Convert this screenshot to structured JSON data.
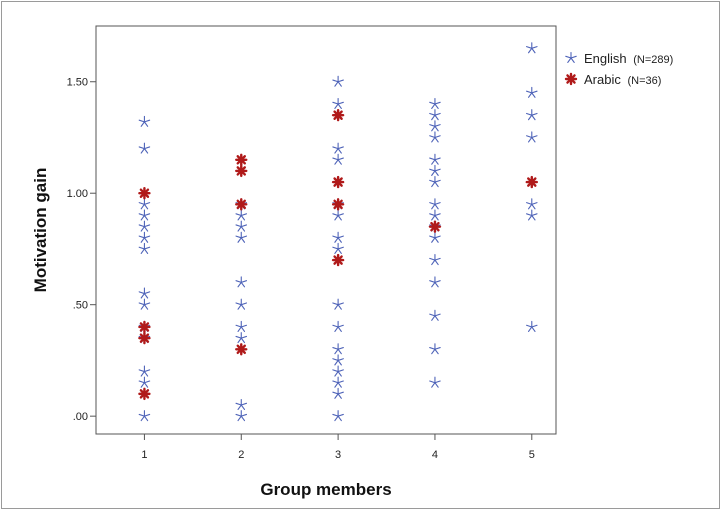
{
  "chart_data": {
    "type": "scatter",
    "xlabel": "Group members",
    "ylabel": "Motivation gain",
    "x_ticks": [
      {
        "value": 1,
        "label": "1"
      },
      {
        "value": 2,
        "label": "2"
      },
      {
        "value": 3,
        "label": "3"
      },
      {
        "value": 4,
        "label": "4"
      },
      {
        "value": 5,
        "label": "5"
      }
    ],
    "y_ticks": [
      {
        "value": 0.0,
        "label": ".00"
      },
      {
        "value": 0.5,
        "label": ".50"
      },
      {
        "value": 1.0,
        "label": "1.00"
      },
      {
        "value": 1.5,
        "label": "1.50"
      }
    ],
    "xlim": [
      0.5,
      5.25
    ],
    "ylim": [
      -0.08,
      1.75
    ],
    "grid": false,
    "legend_position": "right-outside-top",
    "series": [
      {
        "name": "English",
        "legend_label": "English",
        "legend_n": "(N=289)",
        "color": "#4e63b8",
        "marker": "star",
        "points": [
          [
            1,
            1.32
          ],
          [
            1,
            1.2
          ],
          [
            1,
            0.95
          ],
          [
            1,
            0.9
          ],
          [
            1,
            0.85
          ],
          [
            1,
            0.8
          ],
          [
            1,
            0.75
          ],
          [
            1,
            0.55
          ],
          [
            1,
            0.5
          ],
          [
            1,
            0.4
          ],
          [
            1,
            0.35
          ],
          [
            1,
            0.2
          ],
          [
            1,
            0.15
          ],
          [
            1,
            0.0
          ],
          [
            2,
            0.95
          ],
          [
            2,
            0.9
          ],
          [
            2,
            0.85
          ],
          [
            2,
            0.8
          ],
          [
            2,
            0.6
          ],
          [
            2,
            0.5
          ],
          [
            2,
            0.4
          ],
          [
            2,
            0.35
          ],
          [
            2,
            0.05
          ],
          [
            2,
            0.0
          ],
          [
            3,
            1.5
          ],
          [
            3,
            1.4
          ],
          [
            3,
            1.2
          ],
          [
            3,
            1.15
          ],
          [
            3,
            0.95
          ],
          [
            3,
            0.9
          ],
          [
            3,
            0.8
          ],
          [
            3,
            0.75
          ],
          [
            3,
            0.5
          ],
          [
            3,
            0.4
          ],
          [
            3,
            0.3
          ],
          [
            3,
            0.25
          ],
          [
            3,
            0.2
          ],
          [
            3,
            0.15
          ],
          [
            3,
            0.1
          ],
          [
            3,
            0.0
          ],
          [
            4,
            1.4
          ],
          [
            4,
            1.35
          ],
          [
            4,
            1.3
          ],
          [
            4,
            1.25
          ],
          [
            4,
            1.15
          ],
          [
            4,
            1.1
          ],
          [
            4,
            1.05
          ],
          [
            4,
            0.95
          ],
          [
            4,
            0.9
          ],
          [
            4,
            0.85
          ],
          [
            4,
            0.8
          ],
          [
            4,
            0.7
          ],
          [
            4,
            0.6
          ],
          [
            4,
            0.45
          ],
          [
            4,
            0.3
          ],
          [
            4,
            0.15
          ],
          [
            5,
            1.65
          ],
          [
            5,
            1.45
          ],
          [
            5,
            1.35
          ],
          [
            5,
            1.25
          ],
          [
            5,
            0.95
          ],
          [
            5,
            0.9
          ],
          [
            5,
            0.4
          ]
        ]
      },
      {
        "name": "Arabic",
        "legend_label": "Arabic",
        "legend_n": "(N=36)",
        "color": "#b01a1a",
        "marker": "asterisk",
        "points": [
          [
            1,
            1.0
          ],
          [
            1,
            0.4
          ],
          [
            1,
            0.35
          ],
          [
            1,
            0.1
          ],
          [
            2,
            1.15
          ],
          [
            2,
            1.1
          ],
          [
            2,
            0.95
          ],
          [
            2,
            0.3
          ],
          [
            3,
            1.35
          ],
          [
            3,
            1.05
          ],
          [
            3,
            0.95
          ],
          [
            3,
            0.7
          ],
          [
            4,
            0.85
          ],
          [
            5,
            1.05
          ]
        ]
      }
    ]
  }
}
